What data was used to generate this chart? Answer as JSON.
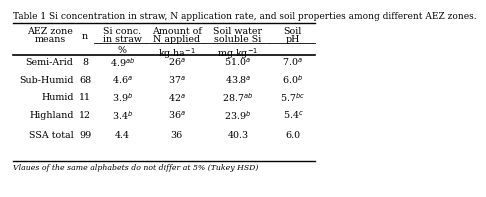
{
  "title": "Table 1 Si concentration in straw, N application rate, and soil properties among different AEZ zones.",
  "rows": [
    [
      "Semi-Arid",
      "8",
      "4.9$^{ab}$",
      "26$^{a}$",
      "51.0$^{a}$",
      "7.0$^{a}$"
    ],
    [
      "Sub-Humid",
      "68",
      "4.6$^{a}$",
      "37$^{a}$",
      "43.8$^{a}$",
      "6.0$^{b}$"
    ],
    [
      "Humid",
      "11",
      "3.9$^{b}$",
      "42$^{a}$",
      "28.7$^{ab}$",
      "5.7$^{bc}$"
    ],
    [
      "Highland",
      "12",
      "3.4$^{b}$",
      "36$^{a}$",
      "23.9$^{b}$",
      "5.4$^{c}$"
    ],
    [
      "SSA total",
      "99",
      "4.4",
      "36",
      "40.3",
      "6.0"
    ]
  ],
  "footnote": "Vlaues of the same alphabets do not differ at 5% (Tukey HSD)",
  "bg_color": "#ffffff",
  "text_color": "#000000",
  "font_size": 6.8,
  "title_font_size": 6.5
}
